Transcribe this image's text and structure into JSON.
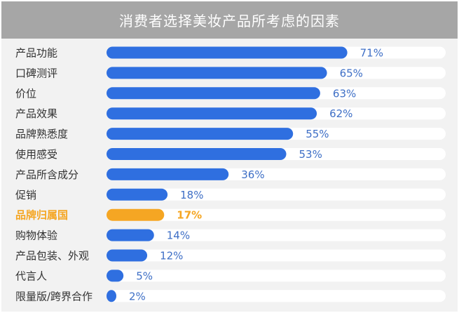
{
  "chart_data": {
    "type": "bar",
    "orientation": "horizontal",
    "title": "消费者选择美妆产品所考虑的因素",
    "categories": [
      "产品功能",
      "口碑测评",
      "价位",
      "产品效果",
      "品牌熟悉度",
      "使用感受",
      "产品所含成分",
      "促销",
      "品牌归属国",
      "购物体验",
      "产品包装、外观",
      "代言人",
      "限量版/跨界合作"
    ],
    "values": [
      71,
      65,
      63,
      62,
      55,
      53,
      36,
      18,
      17,
      14,
      12,
      5,
      2
    ],
    "value_labels": [
      "71%",
      "65%",
      "63%",
      "62%",
      "55%",
      "53%",
      "36%",
      "18%",
      "17%",
      "14%",
      "12%",
      "5%",
      "2%"
    ],
    "highlight_index": 8,
    "xlim": [
      0,
      100
    ],
    "colors": {
      "bar": "#2f6fe0",
      "highlight": "#f5a623",
      "track": "#ffffff",
      "label": "#333333",
      "value_label": "#3e6fc6"
    }
  }
}
